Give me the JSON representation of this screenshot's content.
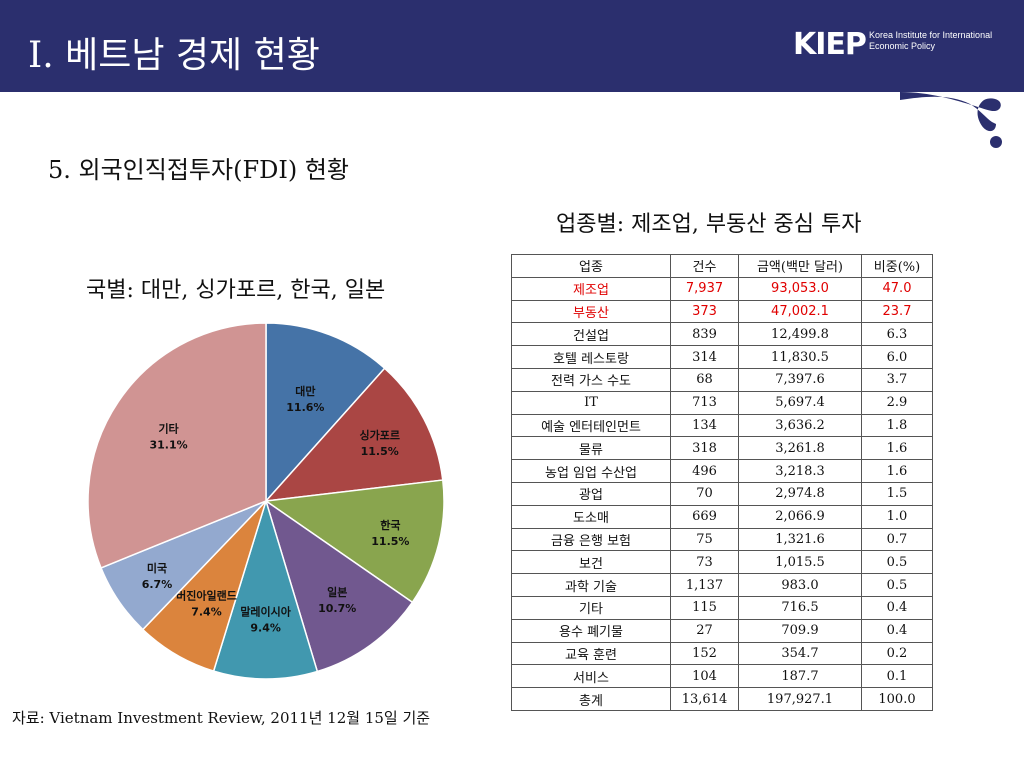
{
  "header": {
    "title": "I. 베트남 경제 현황",
    "logo_mark": "KIEP",
    "logo_line1": "Korea Institute for International",
    "logo_line2": "Economic Policy"
  },
  "section_title": "5. 외국인직접투자(FDI)  현황",
  "industry_title": "업종별: 제조업, 부동산 중심 투자",
  "country_title": "국별: 대만, 싱가포르, 한국, 일본",
  "chart_data": {
    "type": "pie",
    "title": "국별: 대만, 싱가포르, 한국, 일본",
    "categories": [
      "대만",
      "싱가포르",
      "한국",
      "일본",
      "말레이시아",
      "버진아일랜드",
      "미국",
      "기타"
    ],
    "values": [
      11.6,
      11.5,
      11.5,
      10.7,
      9.4,
      7.4,
      6.7,
      31.1
    ],
    "value_labels": [
      "11.6%",
      "11.5%",
      "11.5%",
      "10.7%",
      "9.4%",
      "7.4%",
      "6.7%",
      "31.1%"
    ],
    "colors": [
      "#4573a7",
      "#aa4644",
      "#89a54e",
      "#71588f",
      "#4198af",
      "#db843d",
      "#93a9cf",
      "#d09493"
    ],
    "start_angle": "12 o'clock, clockwise"
  },
  "table": {
    "headers": [
      "업종",
      "건수",
      "금액(백만 달러)",
      "비중(%)"
    ],
    "rows": [
      [
        "제조업",
        "7,937",
        "93,053.0",
        "47.0"
      ],
      [
        "부동산",
        "373",
        "47,002.1",
        "23.7"
      ],
      [
        "건설업",
        "839",
        "12,499.8",
        "6.3"
      ],
      [
        "호텔 레스토랑",
        "314",
        "11,830.5",
        "6.0"
      ],
      [
        "전력 가스 수도",
        "68",
        "7,397.6",
        "3.7"
      ],
      [
        "IT",
        "713",
        "5,697.4",
        "2.9"
      ],
      [
        "예술 엔터테인먼트",
        "134",
        "3,636.2",
        "1.8"
      ],
      [
        "물류",
        "318",
        "3,261.8",
        "1.6"
      ],
      [
        "농업 임업 수산업",
        "496",
        "3,218.3",
        "1.6"
      ],
      [
        "광업",
        "70",
        "2,974.8",
        "1.5"
      ],
      [
        "도소매",
        "669",
        "2,066.9",
        "1.0"
      ],
      [
        "금융 은행 보험",
        "75",
        "1,321.6",
        "0.7"
      ],
      [
        "보건",
        "73",
        "1,015.5",
        "0.5"
      ],
      [
        "과학 기술",
        "1,137",
        "983.0",
        "0.5"
      ],
      [
        "기타",
        "115",
        "716.5",
        "0.4"
      ],
      [
        "용수 폐기물",
        "27",
        "709.9",
        "0.4"
      ],
      [
        "교육 훈련",
        "152",
        "354.7",
        "0.2"
      ],
      [
        "서비스",
        "104",
        "187.7",
        "0.1"
      ],
      [
        "총계",
        "13,614",
        "197,927.1",
        "100.0"
      ]
    ],
    "highlight_color": "#e00000",
    "highlight_rows": [
      0,
      1
    ]
  },
  "source": "자료: Vietnam Investment Review, 2011년 12월 15일 기준",
  "colors": {
    "header_bg": "#2b2f6e",
    "highlight": "#e00000"
  }
}
